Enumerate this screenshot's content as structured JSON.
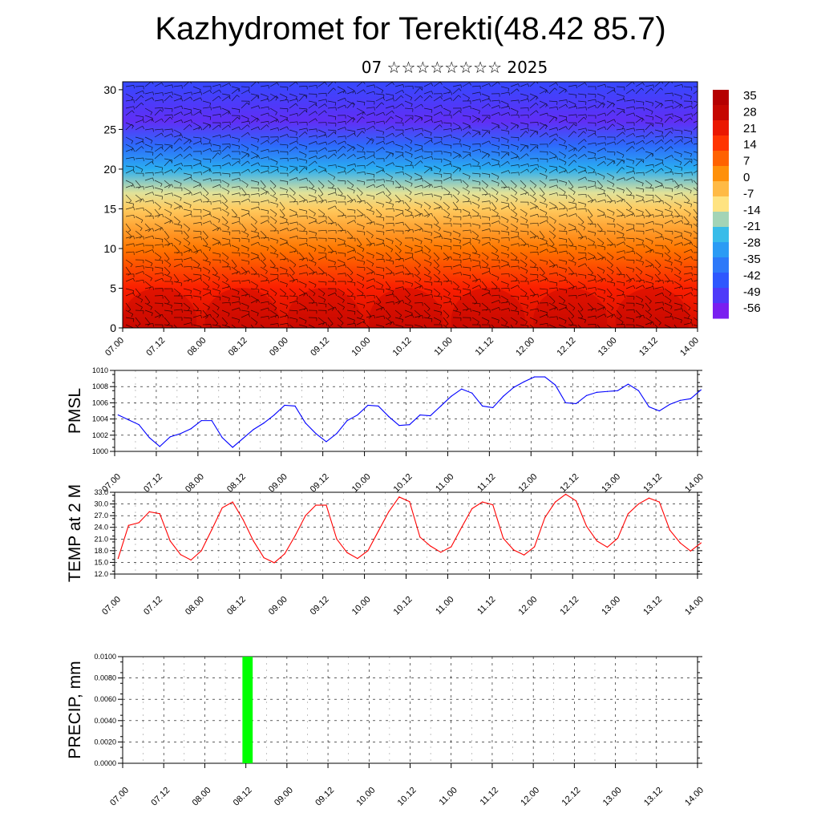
{
  "title": "Kazhydromet for Terekti(48.42 85.7)",
  "subtitle": "07 ☆☆☆☆☆☆☆☆ 2025",
  "time_labels": [
    "07.00",
    "07.12",
    "08.00",
    "08.12",
    "09.00",
    "09.12",
    "10.00",
    "10.12",
    "11.00",
    "11.12",
    "12.00",
    "12.12",
    "13.00",
    "13.12",
    "14.00"
  ],
  "colorbar": {
    "labels": [
      "35",
      "28",
      "21",
      "14",
      "7",
      "0",
      "-7",
      "-14",
      "-21",
      "-28",
      "-35",
      "-42",
      "-49",
      "-56"
    ],
    "colors": {
      "warm_dark": "#b50000",
      "warm": "#ff2000",
      "orange": "#ff8a00",
      "yellow": "#ffe98a",
      "sky": "#29b8f0",
      "blue": "#2f4dff",
      "violet": "#7a1ff0"
    }
  },
  "chart_data": [
    {
      "type": "heatmap",
      "title": "",
      "xlabel": "",
      "ylabel": "",
      "x": [
        "07.00",
        "07.12",
        "08.00",
        "08.12",
        "09.00",
        "09.12",
        "10.00",
        "10.12",
        "11.00",
        "11.12",
        "12.00",
        "12.12",
        "13.00",
        "13.12",
        "14.00"
      ],
      "ylim": [
        0,
        31
      ],
      "yticks": [
        "0",
        "5",
        "10",
        "15",
        "20",
        "25",
        "30"
      ],
      "colorbar_range": [
        -56,
        35
      ],
      "overlay": "wind barbs",
      "level_temperature_profile": [
        {
          "level": 0,
          "temp": 28
        },
        {
          "level": 5,
          "temp": 21
        },
        {
          "level": 10,
          "temp": 7
        },
        {
          "level": 15,
          "temp": -7
        },
        {
          "level": 17,
          "temp": -14
        },
        {
          "level": 20,
          "temp": -28
        },
        {
          "level": 23,
          "temp": -42
        },
        {
          "level": 26,
          "temp": -56
        },
        {
          "level": 31,
          "temp": -49
        }
      ]
    },
    {
      "type": "line",
      "ylabel": "PMSL",
      "ylim": [
        1000,
        1010
      ],
      "yticks": [
        "1000",
        "1002",
        "1004",
        "1006",
        "1008",
        "1010"
      ],
      "grid": true,
      "color": "#0000ff",
      "x_unit": "hours from 07.00, 3-hourly",
      "x": [
        0,
        3,
        6,
        9,
        12,
        15,
        18,
        21,
        24,
        27,
        30,
        33,
        36,
        39,
        42,
        45,
        48,
        51,
        54,
        57,
        60,
        63,
        66,
        69,
        72,
        75,
        78,
        81,
        84,
        87,
        90,
        93,
        96,
        99,
        102,
        105,
        108,
        111,
        114,
        117,
        120,
        123,
        126,
        129,
        132,
        135,
        138,
        141,
        144,
        147,
        150,
        153,
        156,
        159,
        162,
        165,
        168
      ],
      "values": [
        1004.5,
        1003.9,
        1003.3,
        1001.7,
        1000.6,
        1001.8,
        1002.2,
        1002.8,
        1003.8,
        1003.8,
        1001.7,
        1000.5,
        1001.6,
        1002.7,
        1003.5,
        1004.5,
        1005.7,
        1005.6,
        1003.5,
        1002.2,
        1001.2,
        1002.2,
        1003.8,
        1004.5,
        1005.7,
        1005.6,
        1004.3,
        1003.2,
        1003.3,
        1004.5,
        1004.4,
        1005.6,
        1006.8,
        1007.7,
        1007.2,
        1005.6,
        1005.4,
        1006.8,
        1007.9,
        1008.6,
        1009.2,
        1009.2,
        1008.2,
        1006.0,
        1005.9,
        1006.9,
        1007.3,
        1007.4,
        1007.5,
        1008.3,
        1007.5,
        1005.5,
        1005.0,
        1005.8,
        1006.3,
        1006.5,
        1007.6
      ]
    },
    {
      "type": "line",
      "ylabel": "TEMP at 2 M",
      "ylim": [
        12.0,
        33.0
      ],
      "yticks": [
        "12.0",
        "15.0",
        "18.0",
        "21.0",
        "24.0",
        "27.0",
        "30.0",
        "33.0"
      ],
      "grid": true,
      "color": "#ff0000",
      "x_unit": "hours from 07.00, 3-hourly",
      "x": [
        0,
        3,
        6,
        9,
        12,
        15,
        18,
        21,
        24,
        27,
        30,
        33,
        36,
        39,
        42,
        45,
        48,
        51,
        54,
        57,
        60,
        63,
        66,
        69,
        72,
        75,
        78,
        81,
        84,
        87,
        90,
        93,
        96,
        99,
        102,
        105,
        108,
        111,
        114,
        117,
        120,
        123,
        126,
        129,
        132,
        135,
        138,
        141,
        144,
        147,
        150,
        153,
        156,
        159,
        162,
        165,
        168
      ],
      "values": [
        16.0,
        24.5,
        25.2,
        28.0,
        27.5,
        20.5,
        17.0,
        15.6,
        18.0,
        23.4,
        29.0,
        30.5,
        26.0,
        20.5,
        16.2,
        14.9,
        17.2,
        21.8,
        27.0,
        29.7,
        29.7,
        21.0,
        17.5,
        16.0,
        18.0,
        23.0,
        28.0,
        31.8,
        30.6,
        21.5,
        19.2,
        17.6,
        19.0,
        24.0,
        28.8,
        30.5,
        29.8,
        21.2,
        18.2,
        16.9,
        19.0,
        26.5,
        30.5,
        32.5,
        30.8,
        24.3,
        20.5,
        18.9,
        21.2,
        27.5,
        30.0,
        31.5,
        30.5,
        23.3,
        20.0,
        17.9,
        20.0
      ]
    },
    {
      "type": "bar",
      "ylabel": "PRECIP, mm",
      "ylim": [
        0.0,
        0.01
      ],
      "yticks": [
        "0.0000",
        "0.0020",
        "0.0040",
        "0.0060",
        "0.0080",
        "0.0100"
      ],
      "grid": true,
      "color": "#00ff00",
      "x_unit": "hours from 07.00",
      "bars": [
        {
          "x_start": 35,
          "x_end": 38,
          "value": 0.01
        }
      ]
    }
  ]
}
